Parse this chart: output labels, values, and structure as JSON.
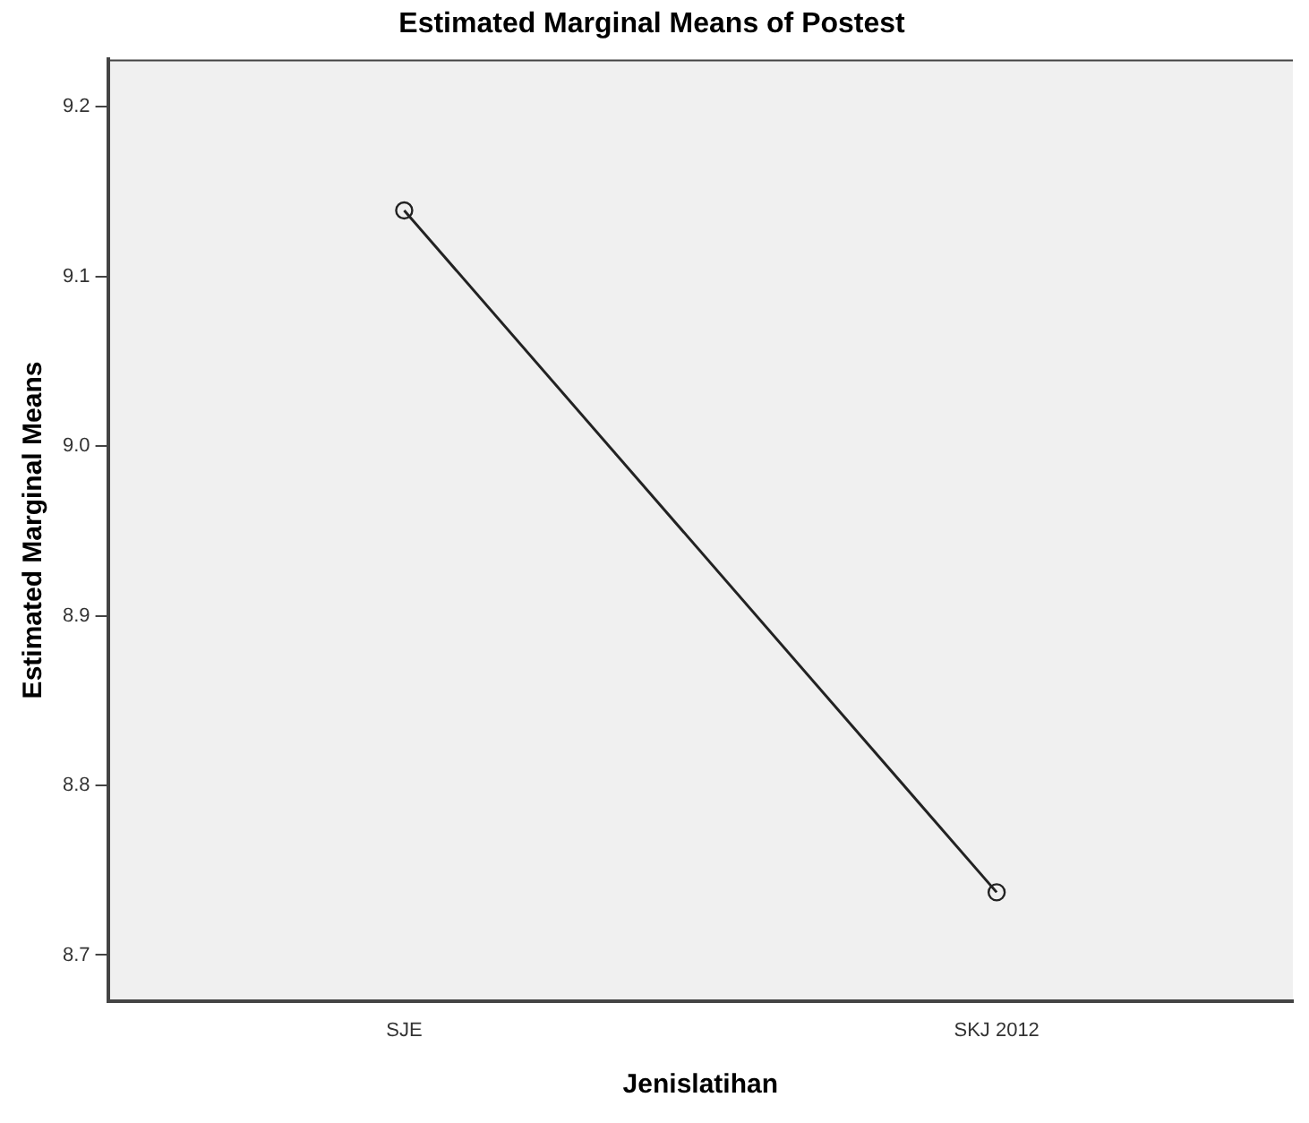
{
  "chart_data": {
    "type": "line",
    "title": "Estimated Marginal Means of Postest",
    "xlabel": "Jenislatihan",
    "ylabel": "Estimated Marginal Means",
    "categories": [
      "SJE",
      "SKJ 2012"
    ],
    "series": [
      {
        "color": "#222222",
        "values": [
          9.139,
          8.737
        ]
      }
    ],
    "ylim": [
      8.673,
      9.228
    ],
    "yticks": [
      8.7,
      8.8,
      8.9,
      {
        "value": 9,
        "label": "9.0"
      },
      9.1,
      9.2
    ],
    "grid": false,
    "legend": false,
    "marker": "circle",
    "line_style": "solid"
  }
}
